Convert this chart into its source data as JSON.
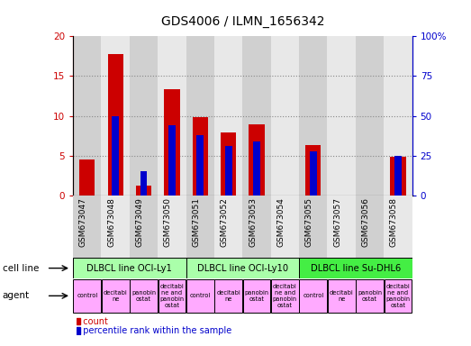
{
  "title": "GDS4006 / ILMN_1656342",
  "samples": [
    "GSM673047",
    "GSM673048",
    "GSM673049",
    "GSM673050",
    "GSM673051",
    "GSM673052",
    "GSM673053",
    "GSM673054",
    "GSM673055",
    "GSM673057",
    "GSM673056",
    "GSM673058"
  ],
  "counts": [
    4.5,
    17.8,
    1.2,
    13.3,
    9.9,
    7.9,
    8.9,
    0.0,
    6.3,
    0.0,
    0.0,
    4.9
  ],
  "percentile_ranks_pct": [
    0,
    50,
    15,
    44,
    38,
    31,
    34,
    0,
    28,
    0,
    0,
    25
  ],
  "ylim_left": [
    0,
    20
  ],
  "ylim_right": [
    0,
    100
  ],
  "yticks_left": [
    0,
    5,
    10,
    15,
    20
  ],
  "yticks_right": [
    0,
    25,
    50,
    75,
    100
  ],
  "ytick_labels_right": [
    "0",
    "25",
    "50",
    "75",
    "100%"
  ],
  "bar_color_count": "#cc0000",
  "bar_color_pct": "#0000cc",
  "grid_color": "#888888",
  "bar_width": 0.55,
  "blue_bar_width": 0.25,
  "tick_color_left": "#cc0000",
  "tick_color_right": "#0000cc",
  "bg_color": "#ffffff",
  "col_colors": [
    "#d0d0d0",
    "#e8e8e8"
  ],
  "cell_line_spans": [
    {
      "label": "DLBCL line OCI-Ly1",
      "start": 0,
      "end": 4,
      "color": "#aaffaa"
    },
    {
      "label": "DLBCL line OCI-Ly10",
      "start": 4,
      "end": 8,
      "color": "#aaffaa"
    },
    {
      "label": "DLBCL line Su-DHL6",
      "start": 8,
      "end": 12,
      "color": "#44ee44"
    }
  ],
  "agent_labels": [
    "control",
    "decitabi\nne",
    "panobin\nostat",
    "decitabi\nne and\npanobin\nostat",
    "control",
    "decitabi\nne",
    "panobin\nostat",
    "decitabi\nne and\npanobin\nostat",
    "control",
    "decitabi\nne",
    "panobin\nostat",
    "decitabi\nne and\npanobin\nostat"
  ],
  "agent_bg": "#ffaaff"
}
